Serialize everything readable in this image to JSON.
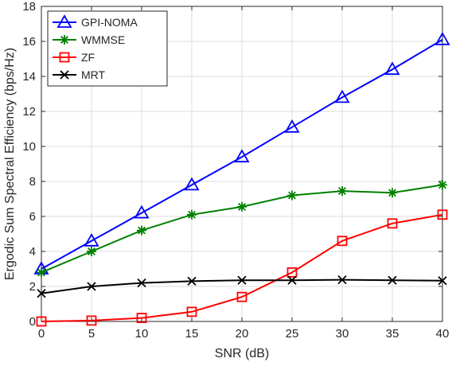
{
  "chart_data": {
    "type": "line",
    "title": "",
    "xlabel": "SNR (dB)",
    "ylabel": "Ergodic Sum Spectral Efficiency (bps/Hz)",
    "xlim": [
      0,
      40
    ],
    "ylim": [
      0,
      18
    ],
    "xticks": [
      0,
      5,
      10,
      15,
      20,
      25,
      30,
      35,
      40
    ],
    "yticks": [
      0,
      2,
      4,
      6,
      8,
      10,
      12,
      14,
      16,
      18
    ],
    "grid": true,
    "legend_position": "top-left",
    "x": [
      0,
      5,
      10,
      15,
      20,
      25,
      30,
      35,
      40
    ],
    "series": [
      {
        "name": "GPI-NOMA",
        "color": "#0000ff",
        "marker": "triangle",
        "values": [
          3.0,
          4.6,
          6.2,
          7.8,
          9.4,
          11.1,
          12.8,
          14.4,
          16.1
        ]
      },
      {
        "name": "WMMSE",
        "color": "#008000",
        "marker": "asterisk",
        "values": [
          2.8,
          4.0,
          5.2,
          6.1,
          6.55,
          7.2,
          7.45,
          7.35,
          7.8
        ]
      },
      {
        "name": "ZF",
        "color": "#ff0000",
        "marker": "square",
        "values": [
          0.0,
          0.05,
          0.2,
          0.55,
          1.4,
          2.8,
          4.6,
          5.6,
          6.1
        ]
      },
      {
        "name": "MRT",
        "color": "#000000",
        "marker": "x",
        "values": [
          1.6,
          2.0,
          2.2,
          2.3,
          2.35,
          2.35,
          2.38,
          2.35,
          2.33
        ]
      }
    ]
  }
}
